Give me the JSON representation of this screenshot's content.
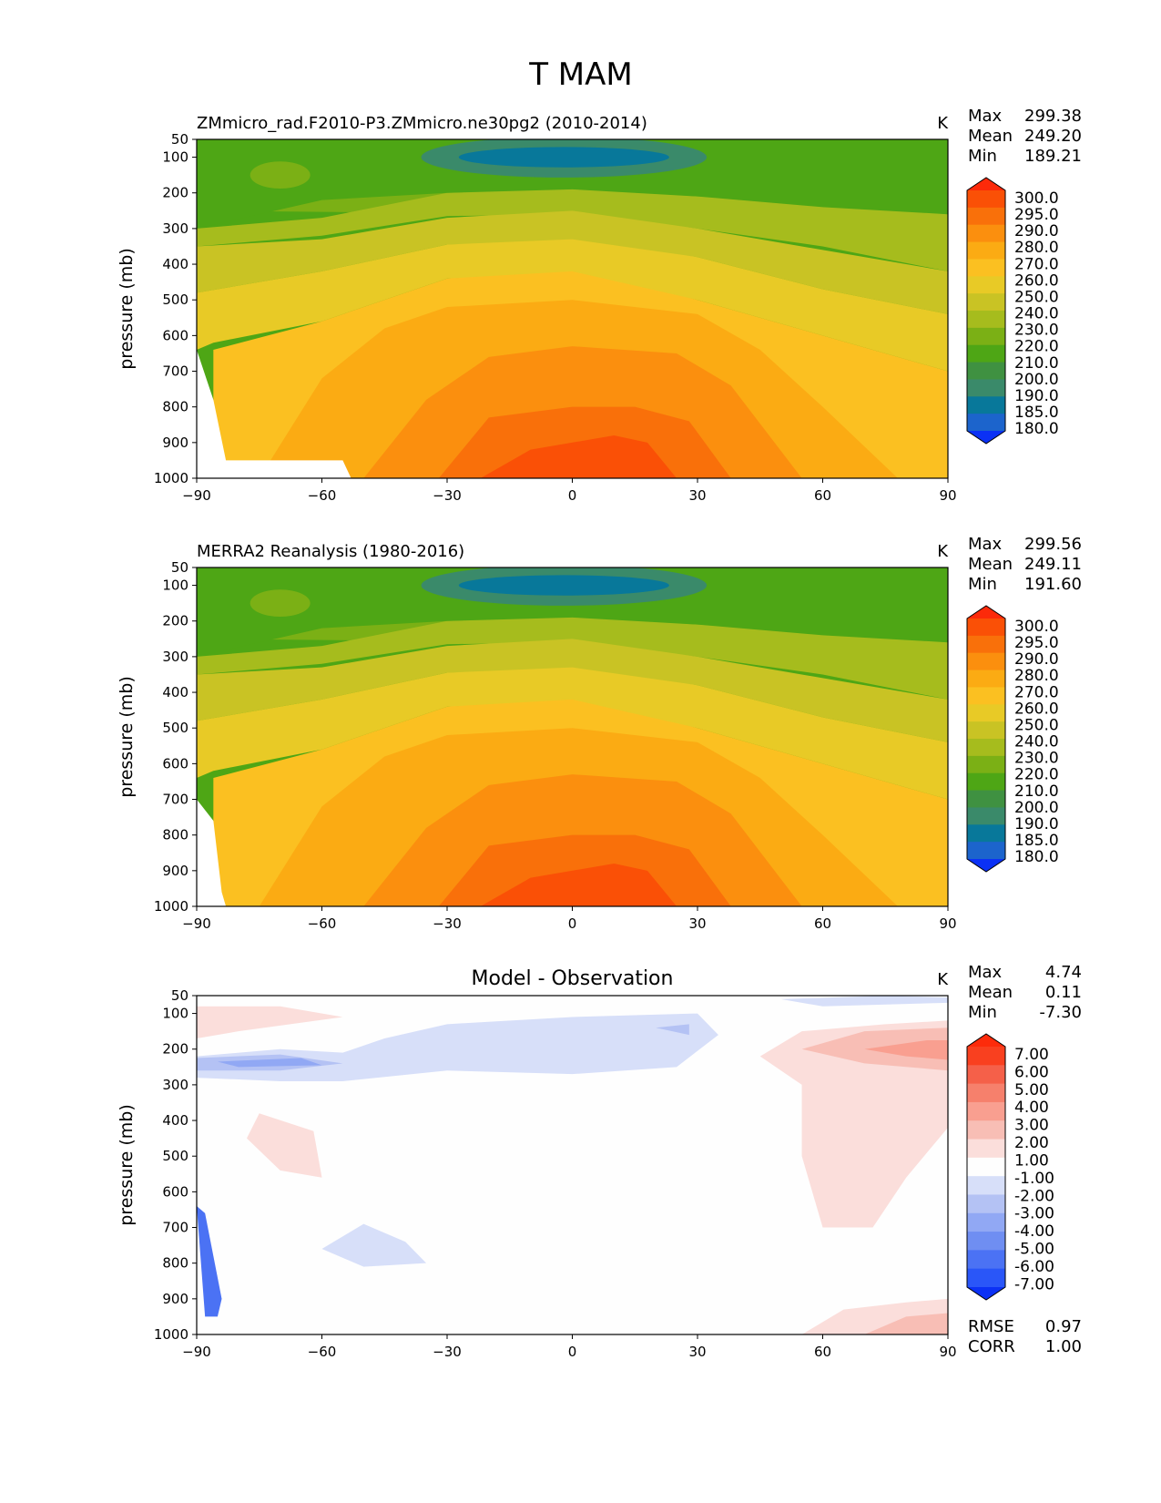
{
  "figure": {
    "title": "T MAM"
  },
  "colors": {
    "abs_levels": [
      "#0b31f5",
      "#1c64cc",
      "#08789a",
      "#3a8a6a",
      "#3f9141",
      "#4ea615",
      "#7bb015",
      "#a6bc1d",
      "#c9c324",
      "#e8ca26",
      "#fbc021",
      "#fbab13",
      "#fb8f0e",
      "#f9700a",
      "#fa5006",
      "#fc2a0a"
    ],
    "diff_levels": [
      "#0b31f5",
      "#2a56f8",
      "#4b72f4",
      "#6f8ef2",
      "#91a8f4",
      "#b4c2f4",
      "#d7dff9",
      "#fefefe",
      "#fbdedb",
      "#f8beb5",
      "#f99f90",
      "#f6806c",
      "#f56049",
      "#f9401f",
      "#fd2b0b"
    ]
  },
  "chart_data": [
    {
      "type": "contour",
      "title": "ZMmicro_rad.F2010-P3.ZMmicro.ne30pg2 (2010-2014)",
      "units": "K",
      "xlabel": "",
      "ylabel": "pressure (mb)",
      "xlim": [
        -90,
        90
      ],
      "ylim": [
        1000,
        50
      ],
      "xticks": [
        "−90",
        "−60",
        "−30",
        "0",
        "30",
        "60",
        "90"
      ],
      "yticks": [
        "50",
        "100",
        "200",
        "300",
        "400",
        "500",
        "600",
        "700",
        "800",
        "900",
        "1000"
      ],
      "stats": {
        "max_label": "Max",
        "max": "299.38",
        "mean_label": "Mean",
        "mean": "249.20",
        "min_label": "Min",
        "min": "189.21"
      },
      "colorbar_levels": [
        "300.0",
        "295.0",
        "290.0",
        "280.0",
        "270.0",
        "260.0",
        "250.0",
        "240.0",
        "230.0",
        "220.0",
        "210.0",
        "200.0",
        "190.0",
        "185.0",
        "180.0"
      ]
    },
    {
      "type": "contour",
      "title": "MERRA2 Reanalysis (1980-2016)",
      "units": "K",
      "xlabel": "",
      "ylabel": "pressure (mb)",
      "xlim": [
        -90,
        90
      ],
      "ylim": [
        1000,
        50
      ],
      "xticks": [
        "−90",
        "−60",
        "−30",
        "0",
        "30",
        "60",
        "90"
      ],
      "yticks": [
        "50",
        "100",
        "200",
        "300",
        "400",
        "500",
        "600",
        "700",
        "800",
        "900",
        "1000"
      ],
      "stats": {
        "max_label": "Max",
        "max": "299.56",
        "mean_label": "Mean",
        "mean": "249.11",
        "min_label": "Min",
        "min": "191.60"
      },
      "colorbar_levels": [
        "300.0",
        "295.0",
        "290.0",
        "280.0",
        "270.0",
        "260.0",
        "250.0",
        "240.0",
        "230.0",
        "220.0",
        "210.0",
        "200.0",
        "190.0",
        "185.0",
        "180.0"
      ]
    },
    {
      "type": "contour",
      "title": "Model - Observation",
      "units": "K",
      "xlabel": "",
      "ylabel": "pressure (mb)",
      "xlim": [
        -90,
        90
      ],
      "ylim": [
        1000,
        50
      ],
      "xticks": [
        "−90",
        "−60",
        "−30",
        "0",
        "30",
        "60",
        "90"
      ],
      "yticks": [
        "50",
        "100",
        "200",
        "300",
        "400",
        "500",
        "600",
        "700",
        "800",
        "900",
        "1000"
      ],
      "stats": {
        "max_label": "Max",
        "max": "4.74",
        "mean_label": "Mean",
        "mean": "0.11",
        "min_label": "Min",
        "min": "-7.30"
      },
      "colorbar_levels": [
        "7.00",
        "6.00",
        "5.00",
        "4.00",
        "3.00",
        "2.00",
        "1.00",
        "-1.00",
        "-2.00",
        "-3.00",
        "-4.00",
        "-5.00",
        "-6.00",
        "-7.00"
      ],
      "extra_stats": {
        "rmse_label": "RMSE",
        "rmse": "0.97",
        "corr_label": "CORR",
        "corr": "1.00"
      }
    }
  ]
}
